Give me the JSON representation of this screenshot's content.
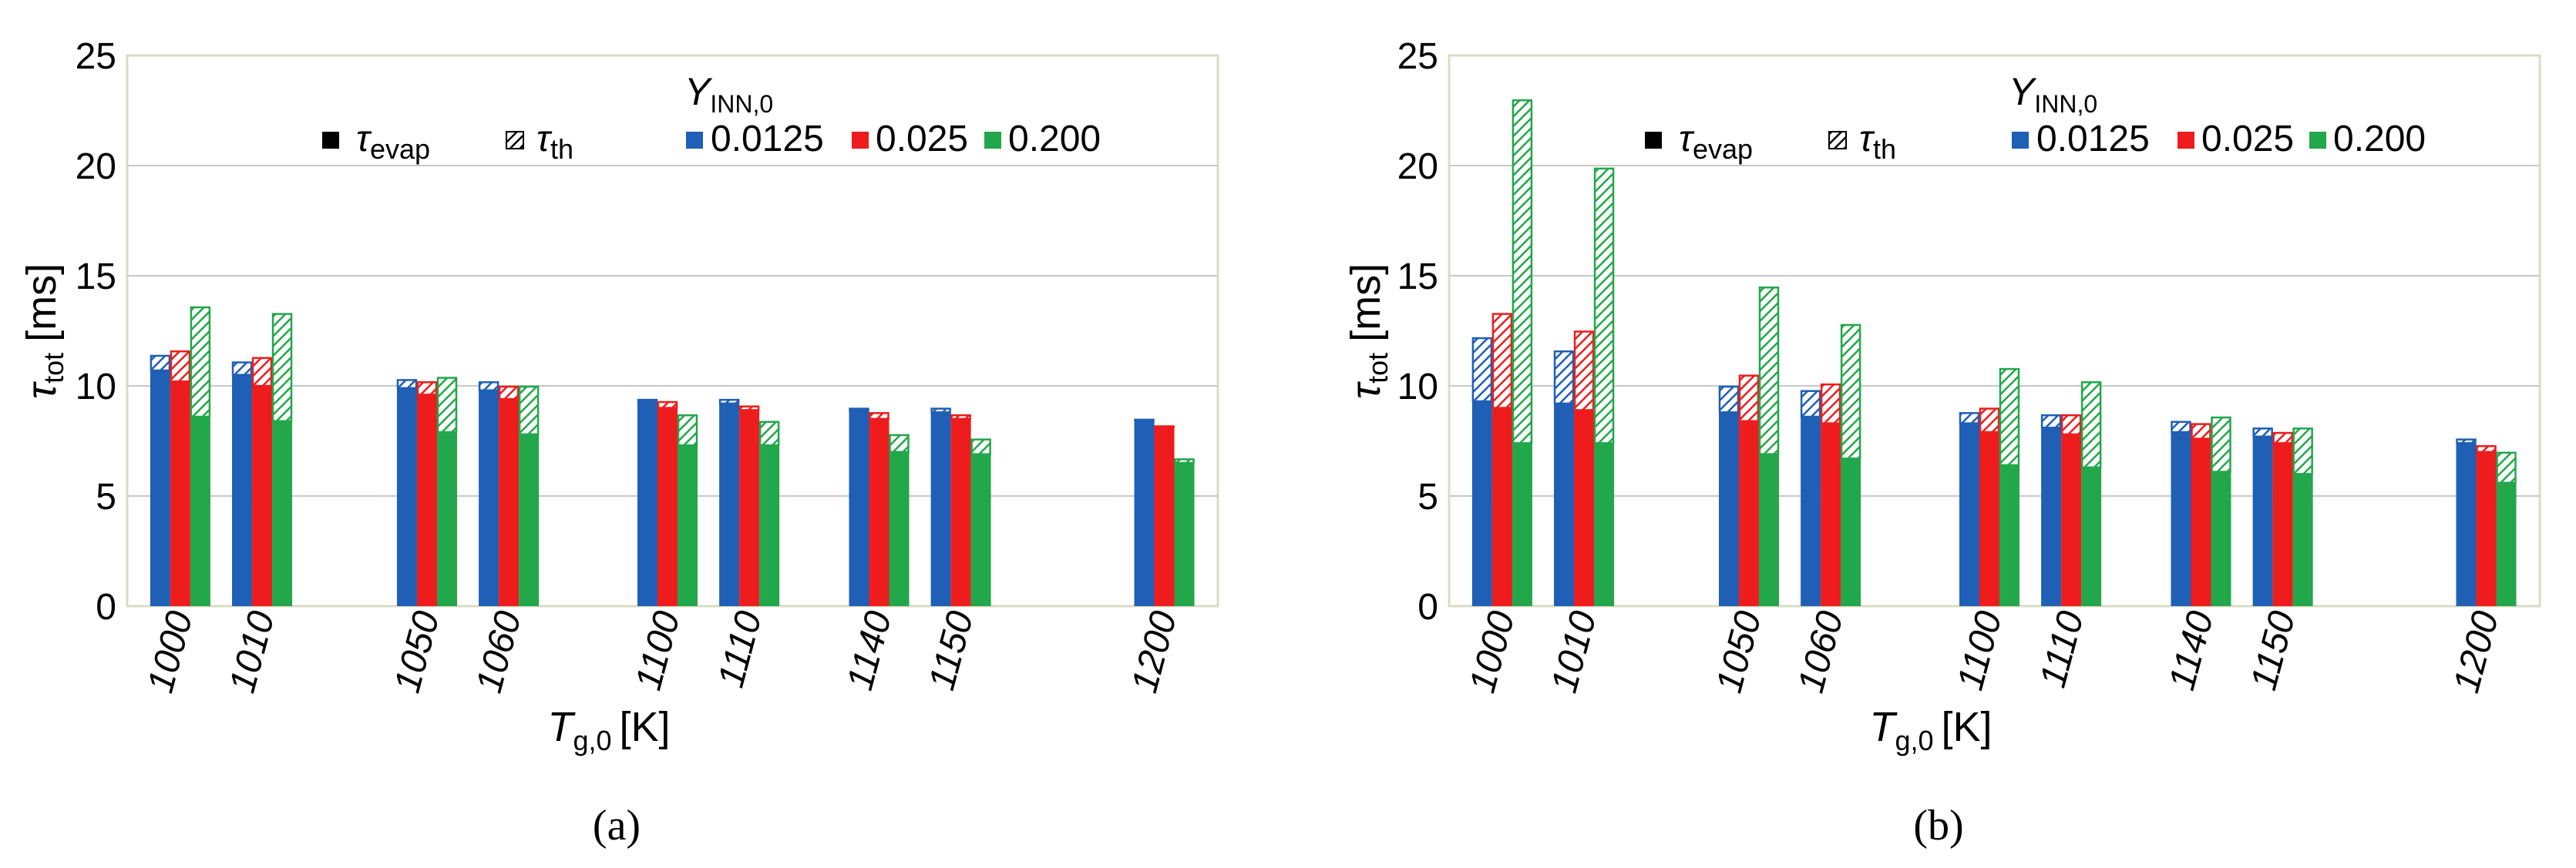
{
  "colors": {
    "blue": "#1f5fb5",
    "red": "#ee1c1c",
    "green": "#22a74a",
    "frame": "#d9dcc4",
    "grid": "#c8c8c8"
  },
  "panel_labels": [
    "(a)",
    "(b)"
  ],
  "chart_data": [
    {
      "type": "bar",
      "stacked": true,
      "panel": "(a)",
      "ylabel": "τ_tot [ms]",
      "ylabel_main": "τ",
      "ylabel_sub": "tot",
      "ylabel_unit": "[ms]",
      "xlabel": "T_g,0 [K]",
      "xlabel_main": "T",
      "xlabel_sub": "g,0",
      "xlabel_unit": "[K]",
      "ylim": [
        0,
        25
      ],
      "yticks": [
        "0",
        "5",
        "10",
        "15",
        "20",
        "25"
      ],
      "grid": true,
      "legend_position": "top",
      "legend_title_main": "Y",
      "legend_title_sub": "INN,0",
      "legend_components": {
        "evap_main": "τ",
        "evap_sub": "evap",
        "th_main": "τ",
        "th_sub": "th"
      },
      "categories": [
        "1000",
        "1010",
        "1050",
        "1060",
        "1100",
        "1110",
        "1140",
        "1150",
        "1200"
      ],
      "series": [
        {
          "name": "0.0125",
          "color": "blue",
          "evap": [
            10.7,
            10.5,
            9.9,
            9.8,
            9.3,
            9.2,
            8.9,
            8.8,
            8.4
          ],
          "tot": [
            11.4,
            11.1,
            10.3,
            10.2,
            9.4,
            9.4,
            9.0,
            9.0,
            8.5
          ]
        },
        {
          "name": "0.025",
          "color": "red",
          "evap": [
            10.2,
            10.0,
            9.6,
            9.4,
            9.0,
            8.9,
            8.5,
            8.5,
            8.1
          ],
          "tot": [
            11.6,
            11.3,
            10.2,
            10.0,
            9.3,
            9.1,
            8.8,
            8.7,
            8.2
          ]
        },
        {
          "name": "0.200",
          "color": "green",
          "evap": [
            8.6,
            8.4,
            7.9,
            7.8,
            7.3,
            7.3,
            7.0,
            6.9,
            6.5
          ],
          "tot": [
            13.6,
            13.3,
            10.4,
            10.0,
            8.7,
            8.4,
            7.8,
            7.6,
            6.7
          ]
        }
      ]
    },
    {
      "type": "bar",
      "stacked": true,
      "panel": "(b)",
      "ylabel": "τ_tot [ms]",
      "ylabel_main": "τ",
      "ylabel_sub": "tot",
      "ylabel_unit": "[ms]",
      "xlabel": "T_g,0 [K]",
      "xlabel_main": "T",
      "xlabel_sub": "g,0",
      "xlabel_unit": "[K]",
      "ylim": [
        0,
        25
      ],
      "yticks": [
        "0",
        "5",
        "10",
        "15",
        "20",
        "25"
      ],
      "grid": true,
      "legend_position": "top",
      "legend_title_main": "Y",
      "legend_title_sub": "INN,0",
      "legend_components": {
        "evap_main": "τ",
        "evap_sub": "evap",
        "th_main": "τ",
        "th_sub": "th"
      },
      "categories": [
        "1000",
        "1010",
        "1050",
        "1060",
        "1100",
        "1110",
        "1140",
        "1150",
        "1200"
      ],
      "series": [
        {
          "name": "0.0125",
          "color": "blue",
          "evap": [
            9.3,
            9.2,
            8.8,
            8.6,
            8.3,
            8.1,
            7.9,
            7.7,
            7.4
          ],
          "tot": [
            12.2,
            11.6,
            10.0,
            9.8,
            8.8,
            8.7,
            8.4,
            8.1,
            7.6
          ]
        },
        {
          "name": "0.025",
          "color": "red",
          "evap": [
            9.0,
            8.9,
            8.4,
            8.3,
            7.9,
            7.8,
            7.6,
            7.4,
            7.0
          ],
          "tot": [
            13.3,
            12.5,
            10.5,
            10.1,
            9.0,
            8.7,
            8.3,
            7.9,
            7.3
          ]
        },
        {
          "name": "0.200",
          "color": "green",
          "evap": [
            7.4,
            7.4,
            6.9,
            6.7,
            6.4,
            6.3,
            6.1,
            6.0,
            5.6
          ],
          "tot": [
            23.0,
            19.9,
            14.5,
            12.8,
            10.8,
            10.2,
            8.6,
            8.1,
            7.0
          ]
        }
      ]
    }
  ]
}
